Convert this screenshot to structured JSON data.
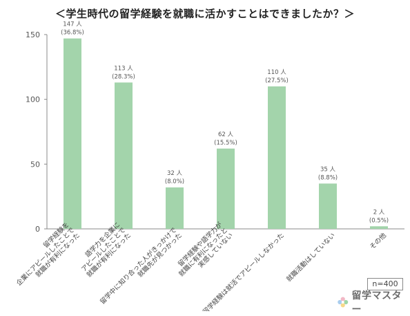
{
  "title": "＜学生時代の留学経験を就職に活かすことはできましたか？＞",
  "sample_note": "n=400",
  "logo_text": "留学マスター",
  "colors": {
    "bar": "#a3d4ab",
    "axis": "#888888",
    "grid": "#dddddd",
    "text": "#555555"
  },
  "chart_data": {
    "type": "bar",
    "title": "＜学生時代の留学経験を就職に活かすことはできましたか？＞",
    "ylim": [
      0,
      150
    ],
    "yticks": [
      0,
      50,
      100,
      150
    ],
    "grid": false,
    "categories": [
      [
        "留学経験を",
        "企業にアピールしたことで",
        "就職が有利になった"
      ],
      [
        "語学力を企業に",
        "アピールしたことで",
        "就職が有利になった"
      ],
      [
        "留学中に知り合った人がきっかけで",
        "就職先が見つかった"
      ],
      [
        "留学経験や語学力が",
        "就職に有利になったと",
        "実感していない"
      ],
      [
        "留学経験は就活でアピールしなかった"
      ],
      [
        "就職活動はしていない"
      ],
      [
        "その他"
      ]
    ],
    "values": [
      147,
      113,
      32,
      62,
      110,
      35,
      2
    ],
    "data_labels": [
      [
        "147 人",
        "(36.8%)"
      ],
      [
        "113 人",
        "(28.3%)"
      ],
      [
        "32 人",
        "(8.0%)"
      ],
      [
        "62 人",
        "(15.5%)"
      ],
      [
        "110 人",
        "(27.5%)"
      ],
      [
        "35 人",
        "(8.8%)"
      ],
      [
        "2 人",
        "(0.5%)"
      ]
    ]
  }
}
